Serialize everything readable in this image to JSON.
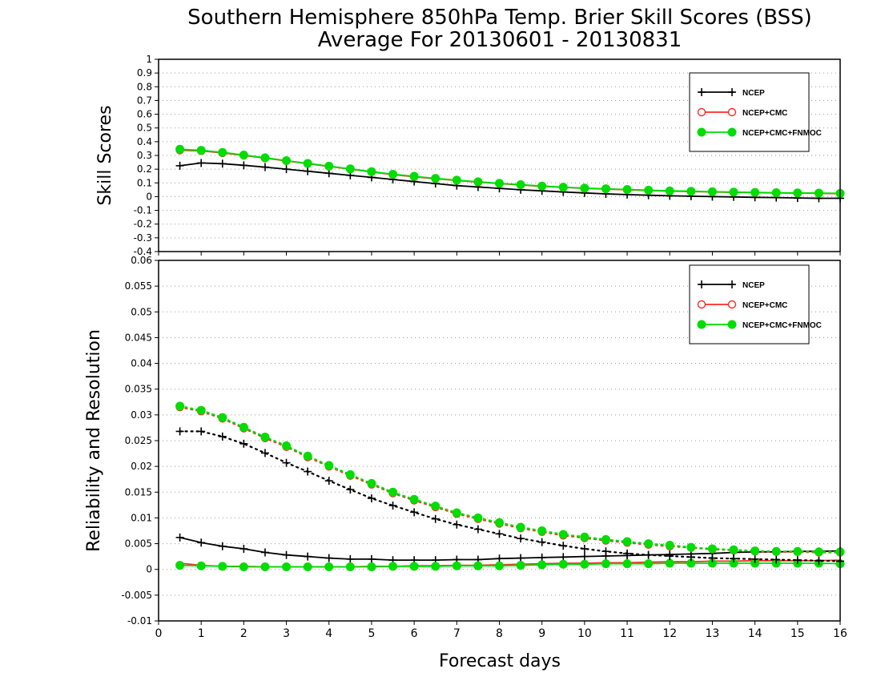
{
  "title_line1": "Southern Hemisphere 850hPa Temp. Brier Skill Scores (BSS)",
  "title_line2": "Average For 20130601 - 20130831",
  "xlabel": "Forecast days",
  "legend_entries": [
    "NCEP",
    "NCEP+CMC",
    "NCEP+CMC+FNMOC"
  ],
  "colors": {
    "NCEP": "#000000",
    "NCEP+CMC": "#ff2a2a",
    "NCEP+CMC+FNMOC": "#00dd00"
  },
  "chart_data": [
    {
      "type": "line",
      "ylabel": "Skill Scores",
      "xlim": [
        0,
        16
      ],
      "ylim": [
        -0.4,
        1
      ],
      "x_ticks": [
        "0",
        "1",
        "2",
        "3",
        "4",
        "5",
        "6",
        "7",
        "8",
        "9",
        "10",
        "11",
        "12",
        "13",
        "14",
        "15",
        "16"
      ],
      "y_ticks": [
        "-0.4",
        "-0.3",
        "-0.2",
        "-0.1",
        "0",
        "0.1",
        "0.2",
        "0.3",
        "0.4",
        "0.5",
        "0.6",
        "0.7",
        "0.8",
        "0.9",
        "1"
      ],
      "grid": true,
      "legend_position": "top-right",
      "x": [
        0.5,
        1,
        1.5,
        2,
        2.5,
        3,
        3.5,
        4,
        4.5,
        5,
        5.5,
        6,
        6.5,
        7,
        7.5,
        8,
        8.5,
        9,
        9.5,
        10,
        10.5,
        11,
        11.5,
        12,
        12.5,
        13,
        13.5,
        14,
        14.5,
        15,
        15.5,
        16
      ],
      "series": [
        {
          "name": "NCEP",
          "marker": "plus",
          "style": "solid",
          "values": [
            0.225,
            0.245,
            0.24,
            0.228,
            0.215,
            0.2,
            0.185,
            0.17,
            0.155,
            0.14,
            0.125,
            0.11,
            0.095,
            0.08,
            0.07,
            0.06,
            0.05,
            0.042,
            0.034,
            0.027,
            0.02,
            0.015,
            0.01,
            0.006,
            0.003,
            0,
            -0.002,
            -0.005,
            -0.007,
            -0.01,
            -0.012,
            -0.012
          ]
        },
        {
          "name": "NCEP+CMC",
          "marker": "open-circle",
          "style": "solid",
          "values": [
            0.338,
            0.333,
            0.318,
            0.3,
            0.28,
            0.26,
            0.24,
            0.22,
            0.2,
            0.18,
            0.16,
            0.145,
            0.13,
            0.118,
            0.105,
            0.095,
            0.085,
            0.075,
            0.067,
            0.06,
            0.055,
            0.05,
            0.045,
            0.04,
            0.037,
            0.034,
            0.031,
            0.029,
            0.027,
            0.025,
            0.024,
            0.022
          ]
        },
        {
          "name": "NCEP+CMC+FNMOC",
          "marker": "filled-circle",
          "style": "solid",
          "values": [
            0.345,
            0.337,
            0.322,
            0.303,
            0.283,
            0.262,
            0.242,
            0.222,
            0.202,
            0.182,
            0.163,
            0.148,
            0.133,
            0.12,
            0.108,
            0.097,
            0.087,
            0.077,
            0.069,
            0.062,
            0.057,
            0.052,
            0.047,
            0.042,
            0.039,
            0.036,
            0.033,
            0.031,
            0.029,
            0.027,
            0.026,
            0.024
          ]
        }
      ]
    },
    {
      "type": "line",
      "ylabel": "Reliability and Resolution",
      "xlabel": "Forecast days",
      "xlim": [
        0,
        16
      ],
      "ylim": [
        -0.01,
        0.06
      ],
      "x_ticks": [
        "0",
        "1",
        "2",
        "3",
        "4",
        "5",
        "6",
        "7",
        "8",
        "9",
        "10",
        "11",
        "12",
        "13",
        "14",
        "15",
        "16"
      ],
      "y_ticks": [
        "-0.01",
        "-0.005",
        "0",
        "0.005",
        "0.01",
        "0.015",
        "0.02",
        "0.025",
        "0.03",
        "0.035",
        "0.04",
        "0.045",
        "0.05",
        "0.055",
        "0.06"
      ],
      "grid": true,
      "legend_position": "top-right",
      "x": [
        0.5,
        1,
        1.5,
        2,
        2.5,
        3,
        3.5,
        4,
        4.5,
        5,
        5.5,
        6,
        6.5,
        7,
        7.5,
        8,
        8.5,
        9,
        9.5,
        10,
        10.5,
        11,
        11.5,
        12,
        12.5,
        13,
        13.5,
        14,
        14.5,
        15,
        15.5,
        16
      ],
      "series": [
        {
          "name": "NCEP",
          "marker": "plus",
          "style": "solid",
          "values": [
            0.0062,
            0.0052,
            0.0045,
            0.004,
            0.0033,
            0.0028,
            0.0025,
            0.0022,
            0.002,
            0.002,
            0.0018,
            0.0018,
            0.0018,
            0.0019,
            0.0019,
            0.0021,
            0.0022,
            0.0023,
            0.0024,
            0.0025,
            0.0026,
            0.0027,
            0.0028,
            0.0029,
            0.003,
            0.0031,
            0.0033,
            0.0034,
            0.0034,
            0.0035,
            0.0035,
            0.0036
          ]
        },
        {
          "name": "NCEP+CMC",
          "marker": "none",
          "style": "solid",
          "values": [
            0.0012,
            0.0008,
            0.0006,
            0.0006,
            0.0005,
            0.0005,
            0.0005,
            0.0005,
            0.0005,
            0.0006,
            0.0006,
            0.0007,
            0.0007,
            0.0008,
            0.0008,
            0.0009,
            0.001,
            0.0011,
            0.0012,
            0.0012,
            0.0013,
            0.0013,
            0.0014,
            0.0015,
            0.0015,
            0.0016,
            0.0016,
            0.0017,
            0.0017,
            0.0017,
            0.0017,
            0.0018
          ]
        },
        {
          "name": "NCEP+CMC+FNMOC",
          "marker": "filled-circle",
          "style": "solid",
          "values": [
            0.0008,
            0.0007,
            0.0006,
            0.0005,
            0.0005,
            0.0005,
            0.0005,
            0.0005,
            0.0005,
            0.0005,
            0.0006,
            0.0006,
            0.0006,
            0.0007,
            0.0007,
            0.0007,
            0.0008,
            0.0009,
            0.001,
            0.001,
            0.0011,
            0.0011,
            0.0011,
            0.0012,
            0.0012,
            0.0012,
            0.0012,
            0.0012,
            0.0012,
            0.0012,
            0.0012,
            0.0011
          ]
        },
        {
          "name": "NCEP",
          "marker": "plus",
          "style": "dotted",
          "values": [
            0.0268,
            0.0268,
            0.0258,
            0.0244,
            0.0226,
            0.0207,
            0.019,
            0.0172,
            0.0155,
            0.0138,
            0.0124,
            0.0111,
            0.0098,
            0.0087,
            0.0078,
            0.0069,
            0.006,
            0.0053,
            0.0046,
            0.004,
            0.0035,
            0.0031,
            0.0028,
            0.0026,
            0.0024,
            0.0022,
            0.0021,
            0.002,
            0.0019,
            0.0018,
            0.0017,
            0.0016
          ]
        },
        {
          "name": "NCEP+CMC",
          "marker": "open-circle",
          "style": "dotted",
          "values": [
            0.0315,
            0.0307,
            0.0293,
            0.0274,
            0.0255,
            0.0238,
            0.0218,
            0.02,
            0.0182,
            0.0165,
            0.0148,
            0.0134,
            0.0121,
            0.0108,
            0.0098,
            0.0089,
            0.008,
            0.0073,
            0.0066,
            0.0061,
            0.0056,
            0.0052,
            0.0048,
            0.0045,
            0.0042,
            0.0039,
            0.0037,
            0.0035,
            0.0034,
            0.0034,
            0.0033,
            0.0033
          ]
        },
        {
          "name": "NCEP+CMC+FNMOC",
          "marker": "filled-circle",
          "style": "dotted",
          "values": [
            0.0317,
            0.0309,
            0.0295,
            0.0276,
            0.0257,
            0.024,
            0.022,
            0.0202,
            0.0184,
            0.0167,
            0.015,
            0.0136,
            0.0123,
            0.011,
            0.01,
            0.0091,
            0.0082,
            0.0075,
            0.0068,
            0.0063,
            0.0058,
            0.0054,
            0.005,
            0.0047,
            0.0043,
            0.004,
            0.0038,
            0.0036,
            0.0035,
            0.0035,
            0.0034,
            0.0034
          ]
        }
      ]
    }
  ]
}
